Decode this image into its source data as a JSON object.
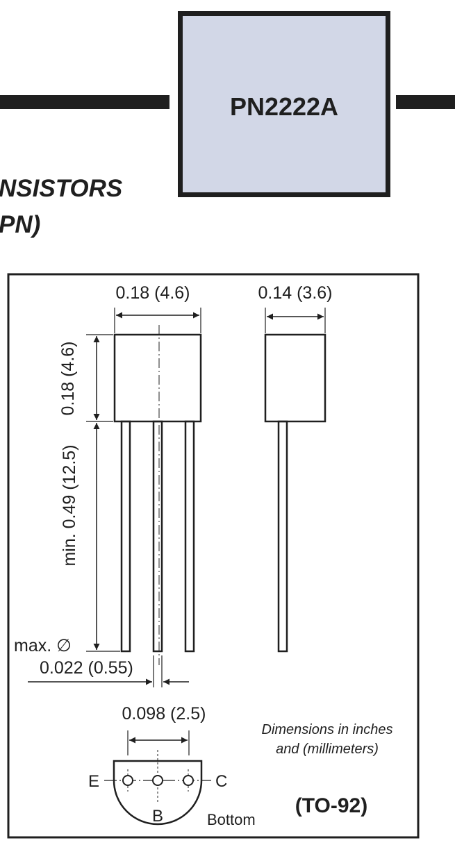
{
  "header": {
    "part_number": "PN2222A",
    "title_line_1": "NSISTORS",
    "title_line_2": "PN)"
  },
  "drawing": {
    "body_width_label": "0.18 (4.6)",
    "body_depth_label": "0.14 (3.6)",
    "body_height_label": "0.18 (4.6)",
    "lead_length_label": "min. 0.49 (12.5)",
    "lead_diameter_prefix": "max. ∅",
    "lead_diameter_label": "0.022 (0.55)",
    "lead_spacing_label": "0.098 (2.5)",
    "units_note_line_1": "Dimensions in inches",
    "units_note_line_2": "and (millimeters)",
    "pin_e": "E",
    "pin_b": "B",
    "pin_c": "C",
    "bottom_label": "Bottom",
    "package_label": "(TO-92)"
  },
  "colors": {
    "ink": "#1f1f1f",
    "part_box_fill": "#d2d7e7"
  }
}
